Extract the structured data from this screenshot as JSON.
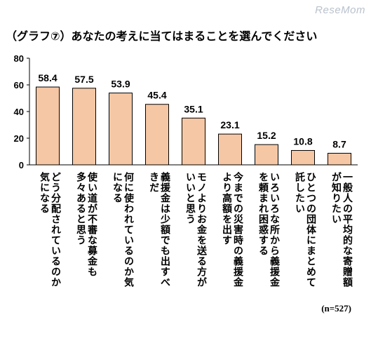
{
  "watermark": "ReseMom",
  "title": "（グラフ⑦）あなたの考えに当てはまることを選んでください",
  "note": "(n=527)",
  "colors": {
    "bar_fill": "#f6c7a4",
    "bar_stroke": "#000000"
  },
  "chart_data": {
    "type": "bar",
    "title": "（グラフ⑦）あなたの考えに当てはまることを選んでください",
    "xlabel": "",
    "ylabel": "",
    "ylim": [
      0,
      80
    ],
    "yticks": [
      0,
      20,
      40,
      60,
      80
    ],
    "grid": false,
    "categories": [
      "どう分配されているのか気になる",
      "使い道が不審な募金も多々あると思う",
      "何に使われているのか気になる",
      "義援金は少額でも出すべきだ",
      "モノよりお金を送る方がいいと思う",
      "今までの災害時の義援金より高額を出す",
      "いろいろな所から義援金を頼まれ困惑する",
      "ひとつの団体にまとめて託したい",
      "一般人の平均的な寄贈額が知りたい"
    ],
    "values": [
      58.4,
      57.5,
      53.9,
      45.4,
      35.1,
      23.1,
      15.2,
      10.8,
      8.7
    ],
    "value_labels": [
      "58.4",
      "57.5",
      "53.9",
      "45.4",
      "35.1",
      "23.1",
      "15.2",
      "10.8",
      "8.7"
    ]
  }
}
